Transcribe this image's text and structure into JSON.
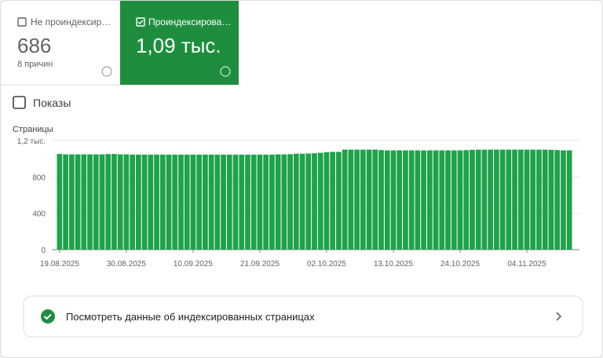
{
  "tabs": {
    "not_indexed": {
      "label": "Не проиндексир…",
      "value": "686",
      "sublabel": "8 причин"
    },
    "indexed": {
      "label": "Проиндексирова…",
      "value": "1,09 тыс."
    }
  },
  "impressions_label": "Показы",
  "chart_data": {
    "type": "bar",
    "y_axis_label": "Страницы",
    "color": "#1fa24a",
    "grid": true,
    "categories": [
      "19.08.2025",
      null,
      null,
      null,
      null,
      null,
      null,
      null,
      null,
      null,
      null,
      "30.08.2025",
      null,
      null,
      null,
      null,
      null,
      null,
      null,
      null,
      null,
      null,
      "10.09.2025",
      null,
      null,
      null,
      null,
      null,
      null,
      null,
      null,
      null,
      null,
      "21.09.2025",
      null,
      null,
      null,
      null,
      null,
      null,
      null,
      null,
      null,
      null,
      "02.10.2025",
      null,
      null,
      null,
      null,
      null,
      null,
      null,
      null,
      null,
      null,
      "13.10.2025",
      null,
      null,
      null,
      null,
      null,
      null,
      null,
      null,
      null,
      null,
      "24.10.2025",
      null,
      null,
      null,
      null,
      null,
      null,
      null,
      null,
      null,
      null,
      "04.11.2025",
      null,
      null,
      null,
      null,
      null,
      null,
      null
    ],
    "values": [
      1052,
      1048,
      1048,
      1048,
      1048,
      1048,
      1048,
      1048,
      1052,
      1052,
      1048,
      1048,
      1045,
      1045,
      1045,
      1045,
      1045,
      1045,
      1045,
      1045,
      1045,
      1045,
      1045,
      1045,
      1045,
      1045,
      1045,
      1045,
      1045,
      1045,
      1045,
      1045,
      1045,
      1045,
      1045,
      1045,
      1048,
      1048,
      1050,
      1055,
      1055,
      1058,
      1060,
      1065,
      1072,
      1075,
      1075,
      1100,
      1100,
      1100,
      1100,
      1100,
      1100,
      1095,
      1092,
      1092,
      1092,
      1092,
      1092,
      1092,
      1092,
      1092,
      1092,
      1092,
      1092,
      1092,
      1092,
      1095,
      1098,
      1100,
      1100,
      1100,
      1100,
      1100,
      1100,
      1100,
      1100,
      1100,
      1100,
      1100,
      1100,
      1098,
      1095,
      1092,
      1092
    ],
    "ylim": [
      0,
      1200
    ],
    "yticks": [
      0,
      400,
      800,
      {
        "value": 1200,
        "label": "1,2 тыс."
      }
    ]
  },
  "link_text": "Посмотреть данные об индексированных страницах"
}
